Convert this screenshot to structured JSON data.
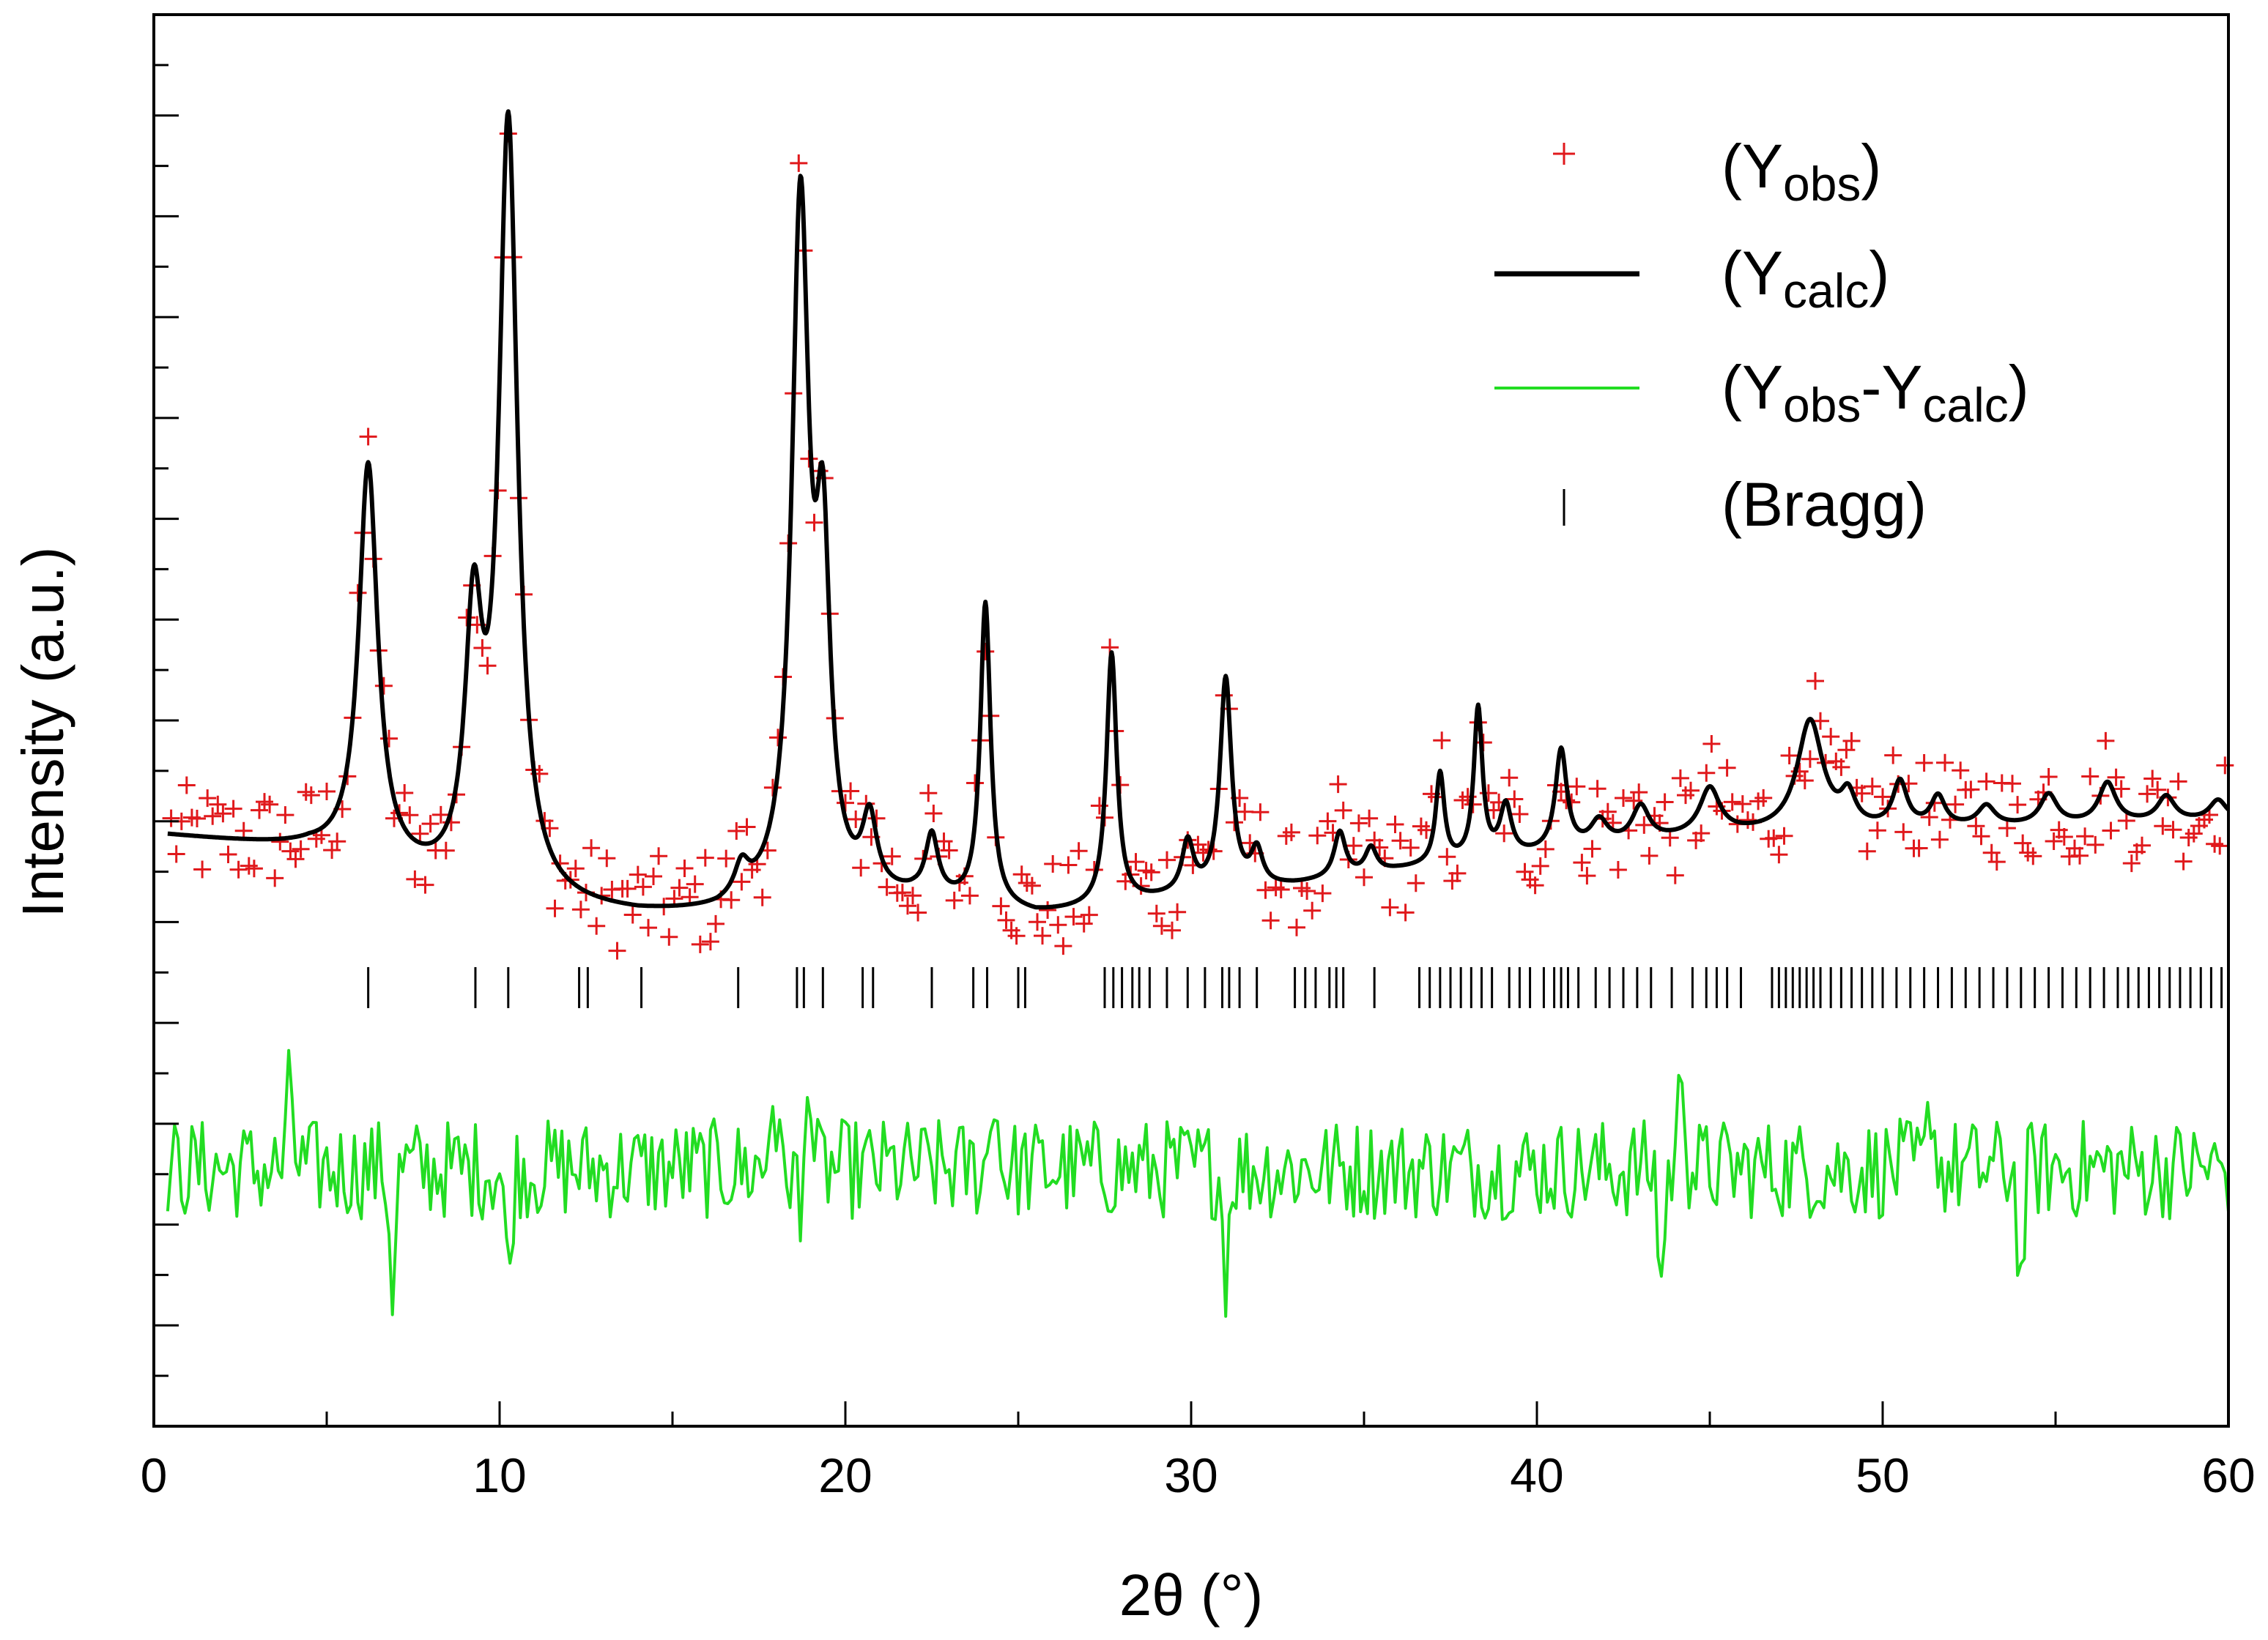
{
  "chart_data": {
    "type": "scatter",
    "title": "",
    "xlabel": "2θ (°)",
    "ylabel": "Intensity (a.u.)",
    "xlim": [
      0,
      60
    ],
    "ylim": [
      0,
      14
    ],
    "xticks": [
      0,
      10,
      20,
      30,
      40,
      50,
      60
    ],
    "xtick_labels": [
      "0",
      "10",
      "20",
      "30",
      "40",
      "50",
      "60"
    ],
    "y_tick_labels_shown": false,
    "grid": false,
    "legend_position": "top-right",
    "legend": [
      {
        "key": "obs",
        "main": "(Y",
        "sub": "obs",
        "tail": ")",
        "marker": "plus",
        "color": "#e0191c"
      },
      {
        "key": "calc",
        "main": "(Y",
        "sub": "calc",
        "tail": ")",
        "marker": "line",
        "color": "#000000"
      },
      {
        "key": "diff",
        "main": "(Y",
        "sub": "obs",
        "mid": "-Y",
        "sub2": "calc",
        "tail": ")",
        "marker": "line",
        "color": "#22dd22"
      },
      {
        "key": "bragg",
        "main": "(Bragg)",
        "marker": "vbar",
        "color": "#000000"
      }
    ],
    "calc_background": [
      [
        0.4,
        5.85
      ],
      [
        4.5,
        5.7
      ],
      [
        10,
        5.15
      ],
      [
        14,
        5.05
      ],
      [
        16.3,
        5.05
      ],
      [
        18,
        5.15
      ],
      [
        22,
        5.2
      ],
      [
        25.5,
        5.05
      ],
      [
        27,
        5.1
      ],
      [
        30,
        5.25
      ],
      [
        33,
        5.35
      ],
      [
        36,
        5.5
      ],
      [
        40,
        5.65
      ],
      [
        45,
        5.85
      ],
      [
        50,
        5.9
      ],
      [
        55,
        5.95
      ],
      [
        60,
        6.0
      ]
    ],
    "calc_peaks": [
      {
        "pos": 6.2,
        "height": 3.95,
        "width": 0.33
      },
      {
        "pos": 9.25,
        "height": 2.5,
        "width": 0.3
      },
      {
        "pos": 10.25,
        "height": 7.65,
        "width": 0.33
      },
      {
        "pos": 17.0,
        "height": 0.3,
        "width": 0.25
      },
      {
        "pos": 18.7,
        "height": 6.8,
        "width": 0.3
      },
      {
        "pos": 19.35,
        "height": 3.1,
        "width": 0.25
      },
      {
        "pos": 20.7,
        "height": 0.7,
        "width": 0.25
      },
      {
        "pos": 22.5,
        "height": 0.6,
        "width": 0.22
      },
      {
        "pos": 24.05,
        "height": 3.0,
        "width": 0.18
      },
      {
        "pos": 27.7,
        "height": 2.5,
        "width": 0.18
      },
      {
        "pos": 29.9,
        "height": 0.5,
        "width": 0.2
      },
      {
        "pos": 31.0,
        "height": 2.1,
        "width": 0.2
      },
      {
        "pos": 31.9,
        "height": 0.35,
        "width": 0.2
      },
      {
        "pos": 34.3,
        "height": 0.45,
        "width": 0.2
      },
      {
        "pos": 35.2,
        "height": 0.25,
        "width": 0.2
      },
      {
        "pos": 37.2,
        "height": 0.9,
        "width": 0.15
      },
      {
        "pos": 38.3,
        "height": 1.5,
        "width": 0.15
      },
      {
        "pos": 39.1,
        "height": 0.5,
        "width": 0.2
      },
      {
        "pos": 40.7,
        "height": 1.0,
        "width": 0.2
      },
      {
        "pos": 41.8,
        "height": 0.25,
        "width": 0.3
      },
      {
        "pos": 43.0,
        "height": 0.35,
        "width": 0.3
      },
      {
        "pos": 45.0,
        "height": 0.45,
        "width": 0.35
      },
      {
        "pos": 47.9,
        "height": 1.1,
        "width": 0.45
      },
      {
        "pos": 49.0,
        "height": 0.3,
        "width": 0.25
      },
      {
        "pos": 50.5,
        "height": 0.45,
        "width": 0.25
      },
      {
        "pos": 51.6,
        "height": 0.3,
        "width": 0.25
      },
      {
        "pos": 53.0,
        "height": 0.2,
        "width": 0.3
      },
      {
        "pos": 54.8,
        "height": 0.3,
        "width": 0.3
      },
      {
        "pos": 56.5,
        "height": 0.4,
        "width": 0.3
      },
      {
        "pos": 58.2,
        "height": 0.25,
        "width": 0.3
      },
      {
        "pos": 59.7,
        "height": 0.2,
        "width": 0.3
      }
    ],
    "obs_scatter_amplitude": 0.5,
    "obs_step": 0.15,
    "diff_baseline": 2.55,
    "diff_amplitude": 0.5,
    "diff_step": 0.1,
    "diff_spikes": [
      {
        "pos": 3.95,
        "value": 3.4
      },
      {
        "pos": 6.9,
        "value": 1.4
      },
      {
        "pos": 10.25,
        "value": 1.4
      },
      {
        "pos": 17.9,
        "value": 3.4
      },
      {
        "pos": 18.9,
        "value": 3.95
      },
      {
        "pos": 18.75,
        "value": 1.6
      },
      {
        "pos": 24.3,
        "value": 3.45
      },
      {
        "pos": 31.0,
        "value": 1.55
      },
      {
        "pos": 43.6,
        "value": 1.4
      },
      {
        "pos": 44.2,
        "value": 3.7
      },
      {
        "pos": 51.4,
        "value": 3.3
      },
      {
        "pos": 54.0,
        "value": 1.35
      }
    ],
    "bragg_row": 4.35,
    "bragg_positions": [
      6.2,
      9.3,
      10.25,
      12.3,
      12.55,
      14.1,
      16.9,
      18.6,
      18.8,
      19.35,
      20.5,
      20.8,
      22.5,
      23.7,
      24.1,
      25.0,
      25.2,
      27.5,
      27.75,
      28.0,
      28.3,
      28.5,
      28.8,
      29.3,
      29.9,
      30.4,
      30.9,
      31.1,
      31.4,
      31.9,
      33.0,
      33.3,
      33.6,
      34.0,
      34.2,
      34.4,
      35.3,
      36.6,
      36.9,
      37.2,
      37.5,
      37.8,
      38.1,
      38.4,
      38.7,
      39.2,
      39.5,
      39.8,
      40.2,
      40.5,
      40.7,
      40.9,
      41.2,
      41.7,
      42.1,
      42.5,
      42.9,
      43.3,
      43.9,
      44.5,
      44.9,
      45.2,
      45.5,
      45.9,
      46.8,
      47.0,
      47.2,
      47.4,
      47.6,
      47.8,
      48.0,
      48.2,
      48.5,
      48.8,
      49.1,
      49.4,
      49.7,
      50.0,
      50.4,
      50.8,
      51.2,
      51.6,
      52.0,
      52.4,
      52.8,
      53.2,
      53.6,
      54.0,
      54.4,
      54.8,
      55.2,
      55.6,
      56.0,
      56.4,
      56.8,
      57.1,
      57.4,
      57.7,
      58.0,
      58.3,
      58.6,
      58.9,
      59.2,
      59.5,
      59.8
    ]
  }
}
